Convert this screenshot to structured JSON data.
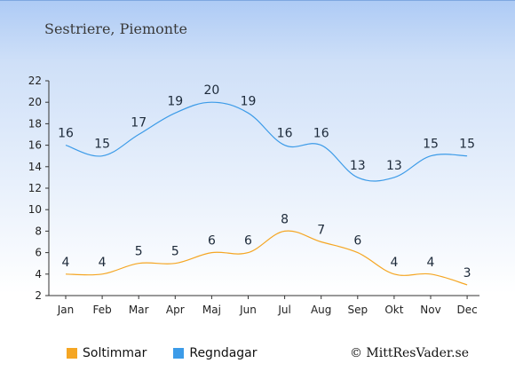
{
  "title": "Sestriere, Piemonte",
  "copyright": "© MittResVader.se",
  "colors": {
    "sun": "#f5a623",
    "rain": "#3c9be8"
  },
  "chart_data": {
    "type": "line",
    "categories": [
      "Jan",
      "Feb",
      "Mar",
      "Apr",
      "Maj",
      "Jun",
      "Jul",
      "Aug",
      "Sep",
      "Okt",
      "Nov",
      "Dec"
    ],
    "series": [
      {
        "name": "Soltimmar",
        "values": [
          4,
          4,
          5,
          5,
          6,
          6,
          8,
          7,
          6,
          4,
          4,
          3
        ]
      },
      {
        "name": "Regndagar",
        "values": [
          16,
          15,
          17,
          19,
          20,
          19,
          16,
          16,
          13,
          13,
          15,
          15
        ]
      }
    ],
    "ylim": [
      2,
      22
    ],
    "yticks": [
      2,
      4,
      6,
      8,
      10,
      12,
      14,
      16,
      18,
      20,
      22
    ],
    "grid": false,
    "legend": "bottom-left"
  }
}
